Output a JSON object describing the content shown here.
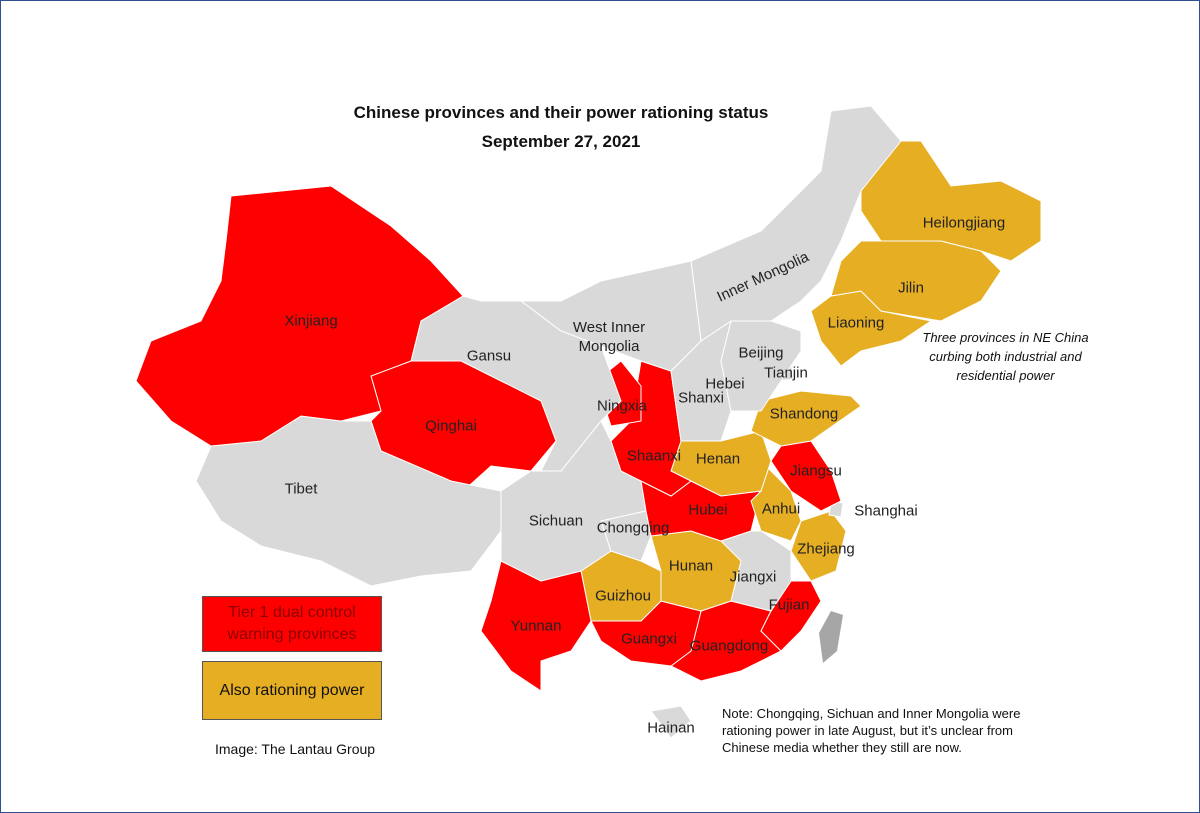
{
  "title": "Chinese provinces and their power rationing status",
  "subtitle": "September 27, 2021",
  "provinces": [
    {
      "label": "Xinjiang",
      "color": "#ff0000"
    },
    {
      "label": "Tibet",
      "color": "#d9d9d9"
    },
    {
      "label": "Qinghai",
      "color": "#ff0000"
    },
    {
      "label": "Gansu",
      "color": "#d9d9d9"
    },
    {
      "label": "West Inner Mongolia",
      "color": "#d9d9d9"
    },
    {
      "label": "Inner Mongolia",
      "color": "#d9d9d9"
    },
    {
      "label": "Heilongjiang",
      "color": "#e6ae22"
    },
    {
      "label": "Jilin",
      "color": "#e6ae22"
    },
    {
      "label": "Liaoning",
      "color": "#e6ae22"
    },
    {
      "label": "Hebei",
      "color": "#d9d9d9"
    },
    {
      "label": "Beijing",
      "color": "#d9d9d9"
    },
    {
      "label": "Tianjin",
      "color": "#d9d9d9"
    },
    {
      "label": "Shanxi",
      "color": "#d9d9d9"
    },
    {
      "label": "Ningxia",
      "color": "#ff0000"
    },
    {
      "label": "Shaanxi",
      "color": "#ff0000"
    },
    {
      "label": "Shandong",
      "color": "#e6ae22"
    },
    {
      "label": "Henan",
      "color": "#e6ae22"
    },
    {
      "label": "Jiangsu",
      "color": "#ff0000"
    },
    {
      "label": "Anhui",
      "color": "#e6ae22"
    },
    {
      "label": "Shanghai",
      "color": "#d9d9d9"
    },
    {
      "label": "Zhejiang",
      "color": "#e6ae22"
    },
    {
      "label": "Hubei",
      "color": "#ff0000"
    },
    {
      "label": "Chongqing",
      "color": "#d9d9d9"
    },
    {
      "label": "Sichuan",
      "color": "#d9d9d9"
    },
    {
      "label": "Yunnan",
      "color": "#ff0000"
    },
    {
      "label": "Guizhou",
      "color": "#e6ae22"
    },
    {
      "label": "Hunan",
      "color": "#e6ae22"
    },
    {
      "label": "Jiangxi",
      "color": "#d9d9d9"
    },
    {
      "label": "Fujian",
      "color": "#ff0000"
    },
    {
      "label": "Guangxi",
      "color": "#ff0000"
    },
    {
      "label": "Guangdong",
      "color": "#ff0000"
    },
    {
      "label": "Hainan",
      "color": "#d9d9d9"
    }
  ],
  "legend": [
    {
      "label": "Tier 1 dual control warning provinces",
      "color": "#ff0000"
    },
    {
      "label": "Also rationing power",
      "color": "#e6ae22"
    }
  ],
  "annotation": "Three provinces in NE China curbing both industrial and residential power",
  "note": "Note: Chongqing, Sichuan and Inner Mongolia were rationing power in late August, but it’s unclear from Chinese media whether they still are now.",
  "credit": "Image: The Lantau Group"
}
